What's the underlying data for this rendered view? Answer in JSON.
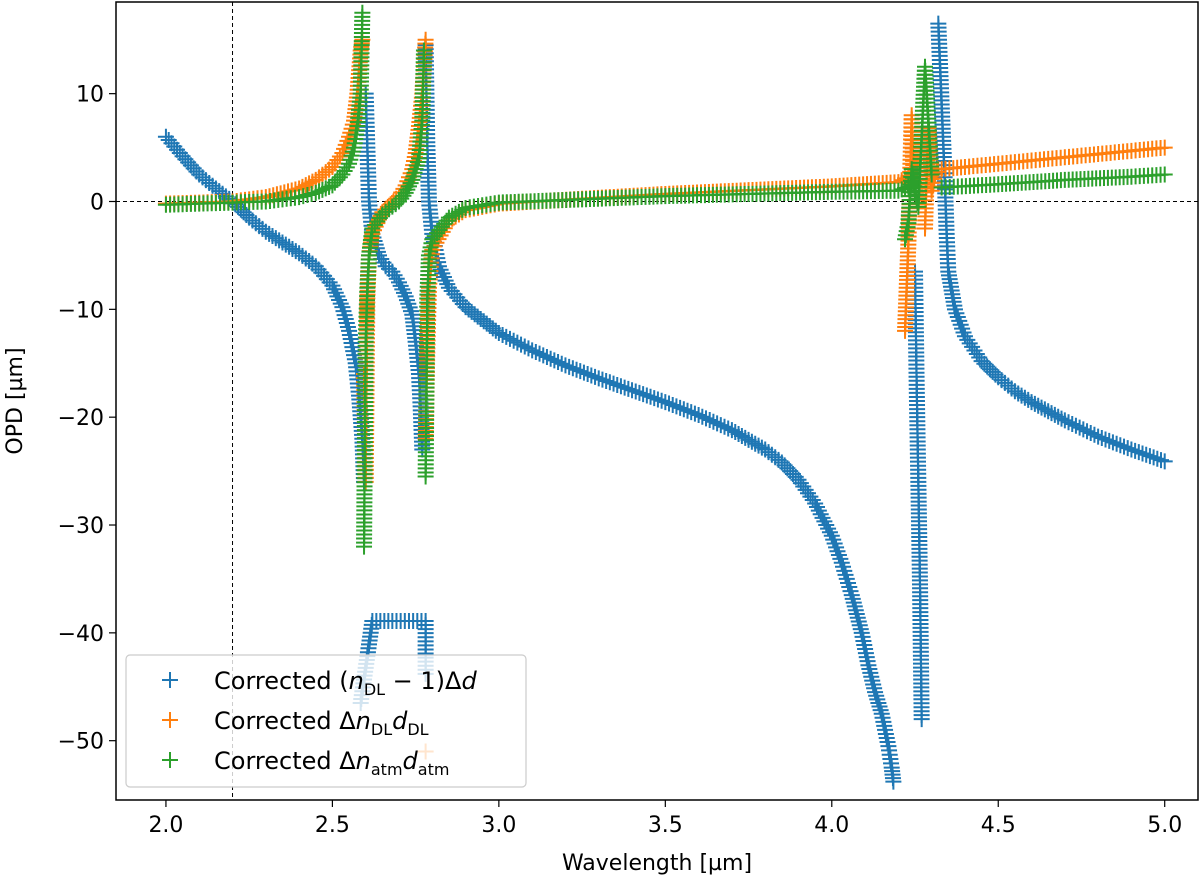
{
  "chart_data": {
    "type": "scatter",
    "xlabel": "Wavelength [µm]",
    "ylabel": "OPD [µm]",
    "xlim": [
      1.85,
      5.1
    ],
    "ylim": [
      -55.5,
      18.5
    ],
    "xticks": [
      2.0,
      2.5,
      3.0,
      3.5,
      4.0,
      4.5,
      5.0
    ],
    "xtick_labels": [
      "2.0",
      "2.5",
      "3.0",
      "3.5",
      "4.0",
      "4.5",
      "5.0"
    ],
    "yticks": [
      10,
      0,
      -10,
      -20,
      -30,
      -40,
      -50
    ],
    "ytick_labels": [
      "10",
      "0",
      "−10",
      "−20",
      "−30",
      "−40",
      "−50"
    ],
    "reference_lines": {
      "horizontal_y": 0,
      "vertical_x": 2.2,
      "style": "dashed"
    },
    "marker": "+",
    "grid": false,
    "legend_position": "lower-left",
    "series": [
      {
        "name": "Corrected (nDL − 1)Δd",
        "legend": {
          "pre": "Corrected (",
          "v1": "n",
          "s1": "DL",
          "mid": " − 1)Δ",
          "v2": "d",
          "s2": ""
        },
        "color": "#1f77b4",
        "segments": [
          {
            "x": [
              2.0,
              2.05,
              2.1,
              2.15,
              2.2,
              2.25,
              2.3,
              2.35,
              2.4,
              2.45,
              2.5,
              2.53,
              2.55,
              2.57,
              2.58,
              2.59,
              2.595
            ],
            "y": [
              6,
              4.2,
              2.5,
              1.2,
              0,
              -1.5,
              -2.8,
              -3.8,
              -4.8,
              -6,
              -7.8,
              -9.8,
              -12,
              -15,
              -18,
              -22,
              -26
            ]
          },
          {
            "x": [
              2.6,
              2.605,
              2.61,
              2.62,
              2.64,
              2.66,
              2.68,
              2.7,
              2.72,
              2.74,
              2.75,
              2.76,
              2.765,
              2.77
            ],
            "y": [
              10,
              5,
              0,
              -3,
              -5,
              -6,
              -6.5,
              -7.5,
              -8.8,
              -10.5,
              -13,
              -16,
              -19,
              -23
            ]
          },
          {
            "x": [
              2.78,
              2.785,
              2.79,
              2.8,
              2.82,
              2.85,
              2.9,
              3.0,
              3.1,
              3.2,
              3.3,
              3.4,
              3.5,
              3.6,
              3.7,
              3.8,
              3.85,
              3.9,
              3.95,
              4.0,
              4.03,
              4.06,
              4.09,
              4.11,
              4.13,
              4.15,
              4.16,
              4.17,
              4.18,
              4.185
            ],
            "y": [
              14.5,
              5.5,
              0,
              -3,
              -6,
              -8,
              -9.8,
              -12.2,
              -13.8,
              -15.2,
              -16.4,
              -17.5,
              -18.6,
              -19.8,
              -21.2,
              -23,
              -24.2,
              -25.8,
              -28,
              -31,
              -33.5,
              -36.5,
              -40,
              -43,
              -45.5,
              -47.5,
              -49,
              -50.5,
              -52.5,
              -53.8
            ]
          },
          {
            "x": [
              4.25,
              4.255,
              4.26,
              4.265,
              4.27
            ],
            "y": [
              -6.5,
              -17,
              -26,
              -35.5,
              -48
            ]
          },
          {
            "x": [
              4.32,
              4.33,
              4.34,
              4.345,
              4.35,
              4.37,
              4.4,
              4.45,
              4.5,
              4.55,
              4.6,
              4.7,
              4.8,
              4.9,
              5.0
            ],
            "y": [
              16.5,
              9,
              1.5,
              -3,
              -6.5,
              -10,
              -12.5,
              -14.8,
              -16.3,
              -17.6,
              -18.6,
              -20.3,
              -21.8,
              -23,
              -24.1
            ]
          },
          {
            "x": [
              2.585,
              2.62,
              2.68,
              2.78,
              2.78
            ],
            "y": [
              -46.5,
              -38.9,
              -38.9,
              -38.9,
              -43.8
            ]
          }
        ]
      },
      {
        "name": "Corrected ΔnDLdDL",
        "legend": {
          "pre": "Corrected Δ",
          "v1": "n",
          "s1": "DL",
          "mid": "",
          "v2": "d",
          "s2": "DL"
        },
        "color": "#ff7f0e",
        "segments": [
          {
            "x": [
              2.0,
              2.1,
              2.2,
              2.3,
              2.4,
              2.45,
              2.5,
              2.53,
              2.55,
              2.565,
              2.575,
              2.585,
              2.59
            ],
            "y": [
              -0.2,
              -0.1,
              0,
              0.4,
              1.2,
              2,
              3.2,
              4.5,
              6,
              7.5,
              10,
              14,
              15
            ]
          },
          {
            "x": [
              2.595,
              2.6,
              2.605,
              2.61,
              2.62,
              2.65,
              2.7,
              2.72,
              2.74,
              2.75,
              2.76,
              2.77,
              2.775,
              2.78
            ],
            "y": [
              -16,
              -26,
              -9,
              -5,
              -3,
              -1,
              0.5,
              1.5,
              3,
              4.5,
              7,
              10,
              12.5,
              15
            ]
          },
          {
            "x": [
              2.78,
              2.785,
              2.79,
              2.8,
              2.85,
              2.9,
              3.0,
              3.5,
              4.0,
              4.2,
              4.24
            ],
            "y": [
              -22,
              -14,
              -8,
              -4.5,
              -1.8,
              -0.8,
              -0.2,
              0.7,
              1.4,
              1.8,
              2.5
            ]
          },
          {
            "x": [
              4.22,
              4.23,
              4.24,
              4.245
            ],
            "y": [
              -12,
              -4,
              8,
              3
            ]
          },
          {
            "x": [
              4.28,
              4.29,
              4.3,
              4.31,
              4.32
            ],
            "y": [
              -2.5,
              6.8,
              1,
              2.5,
              3
            ]
          },
          {
            "x": [
              4.33,
              4.4,
              4.5,
              4.6,
              4.7,
              4.8,
              4.9,
              5.0
            ],
            "y": [
              3,
              3.2,
              3.5,
              3.8,
              4.1,
              4.4,
              4.7,
              5.0
            ]
          },
          {
            "x": [
              2.78
            ],
            "y": [
              -51
            ]
          }
        ]
      },
      {
        "name": "Corrected ΔnatmDatm",
        "legend": {
          "pre": "Corrected Δ",
          "v1": "n",
          "s1": "atm",
          "mid": "",
          "v2": "d",
          "s2": "atm"
        },
        "color": "#2ca02c",
        "segments": [
          {
            "x": [
              2.0,
              2.1,
              2.2,
              2.3,
              2.4,
              2.45,
              2.5,
              2.53,
              2.55,
              2.565,
              2.575,
              2.585,
              2.59
            ],
            "y": [
              -0.3,
              -0.2,
              -0.1,
              0,
              0.4,
              0.8,
              1.5,
              2.5,
              3.5,
              5,
              7,
              10,
              17.5
            ]
          },
          {
            "x": [
              2.595,
              2.6,
              2.605,
              2.61,
              2.62,
              2.65,
              2.7,
              2.72,
              2.74,
              2.76,
              2.77,
              2.775
            ],
            "y": [
              -32,
              -13,
              -8,
              -5,
              -2.5,
              -1.2,
              0,
              0.8,
              2,
              4,
              7.5,
              14
            ]
          },
          {
            "x": [
              2.78,
              2.785,
              2.79,
              2.8,
              2.85,
              2.9,
              3.0,
              3.5,
              4.0,
              4.2,
              4.24
            ],
            "y": [
              -25.5,
              -9,
              -5,
              -3.5,
              -1.5,
              -0.6,
              -0.1,
              0.5,
              0.9,
              1.0,
              1.5
            ]
          },
          {
            "x": [
              4.22,
              4.23,
              4.24,
              4.25,
              4.26,
              4.28,
              4.3
            ],
            "y": [
              -3.5,
              -2,
              3,
              1,
              -0.5,
              12.5,
              2.5
            ]
          },
          {
            "x": [
              4.33,
              4.5,
              4.7,
              4.9,
              5.0
            ],
            "y": [
              1.3,
              1.6,
              2.0,
              2.3,
              2.5
            ]
          }
        ]
      }
    ]
  }
}
